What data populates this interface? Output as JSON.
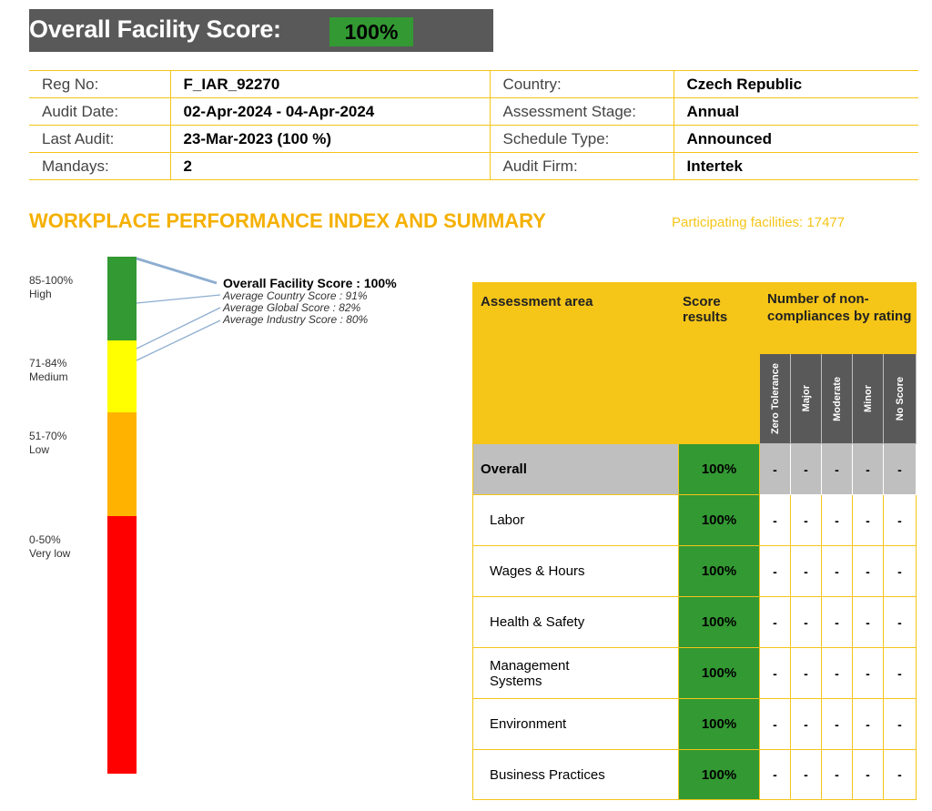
{
  "header": {
    "title": "Overall Facility Score:",
    "score": "100%"
  },
  "info": [
    {
      "l1": "Reg No:",
      "v1": "F_IAR_92270",
      "l2": "Country:",
      "v2": "Czech Republic"
    },
    {
      "l1": "Audit Date:",
      "v1": "02-Apr-2024 - 04-Apr-2024",
      "l2": "Assessment Stage:",
      "v2": "Annual"
    },
    {
      "l1": "Last Audit:",
      "v1": "23-Mar-2023 (100 %)",
      "l2": "Schedule Type:",
      "v2": "Announced"
    },
    {
      "l1": "Mandays:",
      "v1": "2",
      "l2": "Audit Firm:",
      "v2": "Intertek"
    }
  ],
  "section": {
    "title": "WORKPLACE PERFORMANCE INDEX AND SUMMARY",
    "participating": "Participating facilities: 17477"
  },
  "scale": {
    "bands": [
      {
        "range": "85-100%",
        "label": "High",
        "color": "#339933"
      },
      {
        "range": "71-84%",
        "label": "Medium",
        "color": "#ffff00"
      },
      {
        "range": "51-70%",
        "label": "Low",
        "color": "#ffb300"
      },
      {
        "range": "0-50%",
        "label": "Very low",
        "color": "#ff0000"
      }
    ],
    "markers": [
      {
        "text": "Overall Facility Score : 100%",
        "value": 100
      },
      {
        "text": "Average Country Score : 91%",
        "value": 91
      },
      {
        "text": "Average Global Score : 82%",
        "value": 82
      },
      {
        "text": "Average Industry Score : 80%",
        "value": 80
      }
    ]
  },
  "table": {
    "head_area": "Assessment area",
    "head_score": "Score results",
    "head_nc": "Number of non-compliances by rating",
    "ratings": [
      "Zero Tolerance",
      "Major",
      "Moderate",
      "Minor",
      "No Score"
    ],
    "overall": {
      "area": "Overall",
      "score": "100%",
      "counts": [
        "-",
        "-",
        "-",
        "-",
        "-"
      ]
    },
    "rows": [
      {
        "area": "Labor",
        "score": "100%",
        "counts": [
          "-",
          "-",
          "-",
          "-",
          "-"
        ]
      },
      {
        "area": "Wages & Hours",
        "score": "100%",
        "counts": [
          "-",
          "-",
          "-",
          "-",
          "-"
        ]
      },
      {
        "area": "Health & Safety",
        "score": "100%",
        "counts": [
          "-",
          "-",
          "-",
          "-",
          "-"
        ]
      },
      {
        "area": "Management Systems",
        "score": "100%",
        "counts": [
          "-",
          "-",
          "-",
          "-",
          "-"
        ]
      },
      {
        "area": "Environment",
        "score": "100%",
        "counts": [
          "-",
          "-",
          "-",
          "-",
          "-"
        ]
      },
      {
        "area": "Business Practices",
        "score": "100%",
        "counts": [
          "-",
          "-",
          "-",
          "-",
          "-"
        ]
      }
    ]
  }
}
